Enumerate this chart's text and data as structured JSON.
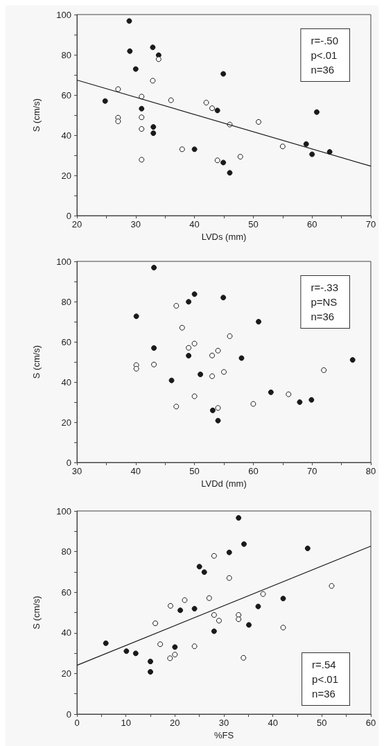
{
  "chart_data": [
    {
      "type": "scatter",
      "xlabel": "LVDs (mm)",
      "ylabel": "S (cm/s)",
      "annotations": [
        "r=-.50\np<.01\nn=36"
      ],
      "marker": "circle",
      "grid": false,
      "xlim": [
        20,
        70
      ],
      "xticks": [
        20,
        {
          "value": 25,
          "label": null
        },
        30,
        {
          "value": 35,
          "label": null
        },
        40,
        {
          "value": 45,
          "label": null
        },
        50,
        {
          "value": 55,
          "label": null
        },
        60,
        {
          "value": 65,
          "label": null
        },
        70
      ],
      "ylim": [
        0,
        100
      ],
      "yticks": [
        0,
        {
          "value": 10,
          "label": null
        },
        20,
        {
          "value": 30,
          "label": null
        },
        40,
        {
          "value": 50,
          "label": null
        },
        60,
        {
          "value": 70,
          "label": null
        },
        80,
        {
          "value": 90,
          "label": null
        },
        100
      ],
      "series": [
        {
          "color": "#1a1a1a",
          "x": [
            28.9,
            29,
            30,
            32.9,
            33.9,
            24.8,
            31,
            33,
            33,
            44.9,
            43.9,
            40,
            44.9,
            46,
            60.8,
            59,
            60,
            63
          ],
          "values": [
            96.8,
            81.8,
            72.9,
            83.7,
            79.8,
            57,
            53.2,
            44.1,
            41,
            70.5,
            52.3,
            33,
            26.4,
            21.3,
            51.5,
            35.6,
            30.5,
            31.7
          ]
        },
        {
          "color": "#ffffff",
          "x": [
            27,
            27,
            27,
            31,
            31,
            31,
            31,
            32.9,
            33.9,
            36,
            37.9,
            42,
            43,
            43.9,
            46,
            47.8,
            50.9,
            55
          ],
          "values": [
            62.9,
            48.7,
            46.9,
            59.2,
            48.9,
            43.1,
            27.8,
            67.1,
            77.8,
            57.4,
            33,
            56.2,
            53.4,
            27.5,
            45.3,
            29.3,
            46.6,
            34.4
          ]
        },
        {
          "type": "line",
          "marker": "none",
          "color": "#1a1a1a",
          "x": [
            20,
            70
          ],
          "values": [
            67.4,
            24.6
          ]
        }
      ]
    },
    {
      "type": "scatter",
      "xlabel": "LVDd (mm)",
      "ylabel": "S (cm/s)",
      "annotations": [
        "r=-.33\np=NS\nn=36"
      ],
      "marker": "circle",
      "grid": false,
      "xlim": [
        30,
        80
      ],
      "xticks": [
        30,
        {
          "value": 35,
          "label": null
        },
        40,
        {
          "value": 45,
          "label": null
        },
        50,
        {
          "value": 55,
          "label": null
        },
        60,
        {
          "value": 65,
          "label": null
        },
        70,
        {
          "value": 75,
          "label": null
        },
        80
      ],
      "ylim": [
        0,
        100
      ],
      "yticks": [
        0,
        {
          "value": 10,
          "label": null
        },
        20,
        {
          "value": 30,
          "label": null
        },
        40,
        {
          "value": 50,
          "label": null
        },
        60,
        {
          "value": 70,
          "label": null
        },
        80,
        {
          "value": 90,
          "label": null
        },
        100
      ],
      "series": [
        {
          "color": "#1a1a1a",
          "x": [
            43.1,
            40.1,
            50,
            49,
            54.9,
            60.9,
            43.1,
            49,
            58,
            51,
            46.1,
            63,
            67.9,
            69.9,
            53.1,
            54,
            76.9
          ],
          "values": [
            96.9,
            72.7,
            83.7,
            79.9,
            82,
            70,
            56.9,
            53.1,
            51.9,
            43.8,
            40.8,
            34.9,
            30,
            31.1,
            25.9,
            20.8,
            51
          ]
        },
        {
          "color": "#ffffff",
          "x": [
            46.9,
            47.9,
            49,
            50,
            56,
            53,
            54,
            40.1,
            40.1,
            43.1,
            55,
            53,
            50,
            46.9,
            54,
            60,
            66,
            72
          ],
          "values": [
            77.9,
            67,
            57,
            59.1,
            62.8,
            53.2,
            55.6,
            48.4,
            46.6,
            48.7,
            45,
            42.9,
            32.9,
            27.8,
            27.1,
            29.1,
            33.9,
            45.9
          ]
        }
      ]
    },
    {
      "type": "scatter",
      "xlabel": "%FS",
      "ylabel": "S (cm/s)",
      "annotations": [
        "r=.54\np<.01\nn=36"
      ],
      "marker": "circle",
      "grid": false,
      "xlim": [
        0,
        60
      ],
      "xticks": [
        0,
        {
          "value": 5,
          "label": null
        },
        10,
        {
          "value": 15,
          "label": null
        },
        20,
        {
          "value": 25,
          "label": null
        },
        30,
        {
          "value": 35,
          "label": null
        },
        40,
        {
          "value": 45,
          "label": null
        },
        50,
        {
          "value": 55,
          "label": null
        },
        60
      ],
      "ylim": [
        0,
        100
      ],
      "yticks": [
        0,
        {
          "value": 10,
          "label": null
        },
        20,
        {
          "value": 30,
          "label": null
        },
        40,
        {
          "value": 50,
          "label": null
        },
        60,
        {
          "value": 70,
          "label": null
        },
        80,
        {
          "value": 90,
          "label": null
        },
        100
      ],
      "series": [
        {
          "color": "#1a1a1a",
          "x": [
            33,
            34.1,
            31.1,
            47.1,
            25,
            26,
            21.1,
            24,
            37,
            42.1,
            28,
            35.1,
            5.9,
            10.1,
            12,
            15,
            15,
            20
          ],
          "values": [
            96.6,
            83.7,
            79.6,
            81.6,
            72.6,
            69.9,
            51.1,
            51.9,
            53,
            56.9,
            40.8,
            43.9,
            34.9,
            31,
            29.9,
            25.9,
            20.8,
            33
          ]
        },
        {
          "color": "#ffffff",
          "x": [
            28,
            31.1,
            27,
            22,
            19.1,
            38,
            52,
            28,
            29,
            33,
            33,
            42.1,
            16,
            17,
            24,
            19,
            20,
            34
          ],
          "values": [
            77.9,
            67,
            57.1,
            56.1,
            53.3,
            59.1,
            63.1,
            48.8,
            46,
            48.8,
            46.7,
            42.6,
            44.7,
            34.4,
            33.4,
            27.5,
            29.3,
            27.7
          ]
        },
        {
          "type": "line",
          "marker": "none",
          "color": "#1a1a1a",
          "x": [
            0,
            60
          ],
          "values": [
            24,
            82.7
          ]
        }
      ]
    }
  ]
}
